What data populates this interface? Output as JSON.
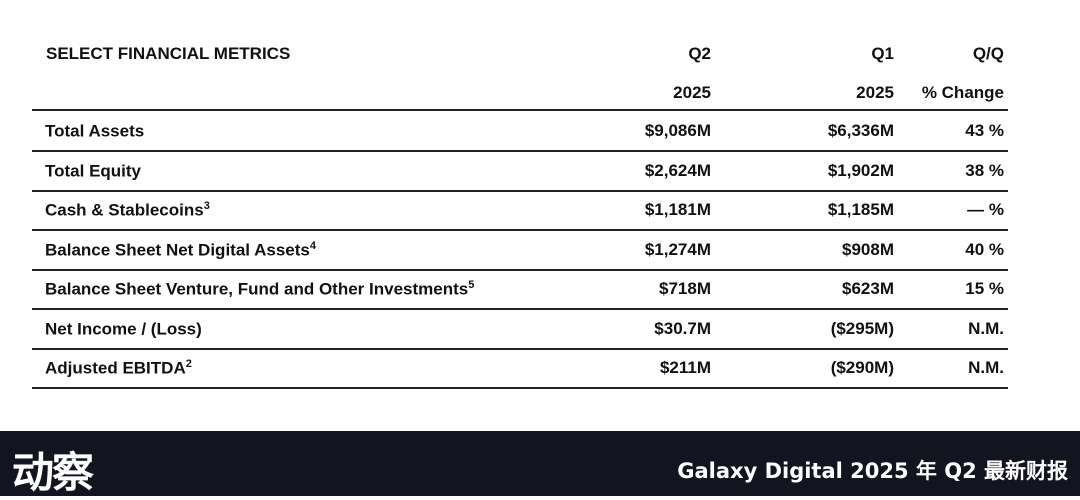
{
  "table": {
    "title": "SELECT FINANCIAL METRICS",
    "headers": {
      "q2_line1": "Q2",
      "q2_line2": "2025",
      "q1_line1": "Q1",
      "q1_line2": "2025",
      "qq_line1": "Q/Q",
      "qq_line2": "% Change"
    },
    "rows": [
      {
        "label": "Total Assets",
        "sup": "",
        "q2": "$9,086M",
        "q1": "$6,336M",
        "change": "43 %"
      },
      {
        "label": "Total Equity",
        "sup": "",
        "q2": "$2,624M",
        "q1": "$1,902M",
        "change": "38 %"
      },
      {
        "label": "Cash & Stablecoins",
        "sup": "3",
        "q2": "$1,181M",
        "q1": "$1,185M",
        "change": "— %"
      },
      {
        "label": "Balance Sheet Net Digital Assets",
        "sup": "4",
        "q2": "$1,274M",
        "q1": "$908M",
        "change": "40 %"
      },
      {
        "label": "Balance Sheet Venture, Fund and Other Investments",
        "sup": "5",
        "q2": "$718M",
        "q1": "$623M",
        "change": "15 %"
      },
      {
        "label": "Net Income / (Loss)",
        "sup": "",
        "q2": "$30.7M",
        "q1": "($295M)",
        "change": "N.M."
      },
      {
        "label": "Adjusted EBITDA",
        "sup": "2",
        "q2": "$211M",
        "q1": "($290M)",
        "change": "N.M."
      }
    ]
  },
  "footer": {
    "logo": "动察",
    "title": "Galaxy Digital 2025 年 Q2 最新财报"
  }
}
